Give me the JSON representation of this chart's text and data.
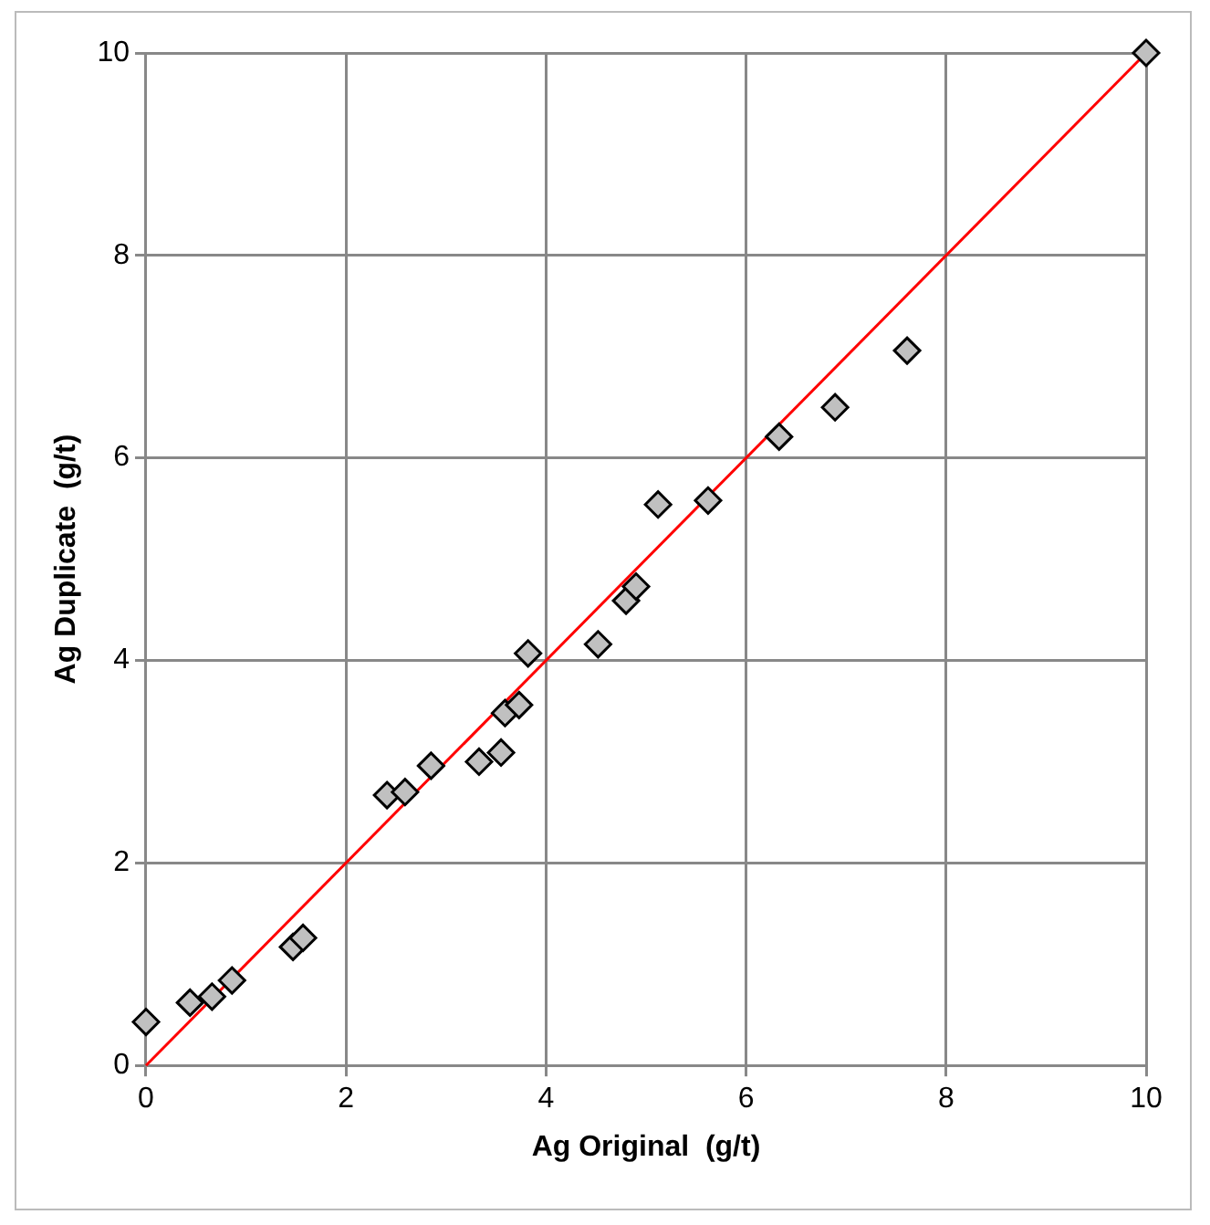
{
  "chart_data": {
    "type": "scatter",
    "xlabel": "Ag Original  (g/t)",
    "ylabel": "Ag Duplicate  (g/t)",
    "xlim": [
      0,
      10
    ],
    "xticks": [
      0,
      2,
      4,
      6,
      8,
      10
    ],
    "ylim": [
      0,
      10
    ],
    "yticks": [
      0,
      2,
      4,
      6,
      8,
      10
    ],
    "grid": true,
    "marker": "diamond",
    "series": [
      {
        "color": "#c0c0c0",
        "x": [
          0.0,
          0.44,
          0.66,
          0.86,
          1.47,
          1.57,
          2.41,
          2.59,
          2.85,
          3.33,
          3.55,
          3.59,
          3.73,
          3.82,
          4.52,
          4.8,
          4.9,
          5.12,
          5.62,
          6.33,
          6.89,
          7.61,
          10
        ],
        "values": [
          0.43,
          0.62,
          0.68,
          0.84,
          1.17,
          1.26,
          2.67,
          2.7,
          2.96,
          3.0,
          3.09,
          3.48,
          3.56,
          4.07,
          4.16,
          4.59,
          4.73,
          5.54,
          5.58,
          6.21,
          6.5,
          7.06,
          10
        ]
      },
      {
        "type": "line",
        "color": "#ff0000",
        "marker": "none",
        "x": [
          0,
          10
        ],
        "values": [
          0,
          10
        ]
      }
    ]
  }
}
